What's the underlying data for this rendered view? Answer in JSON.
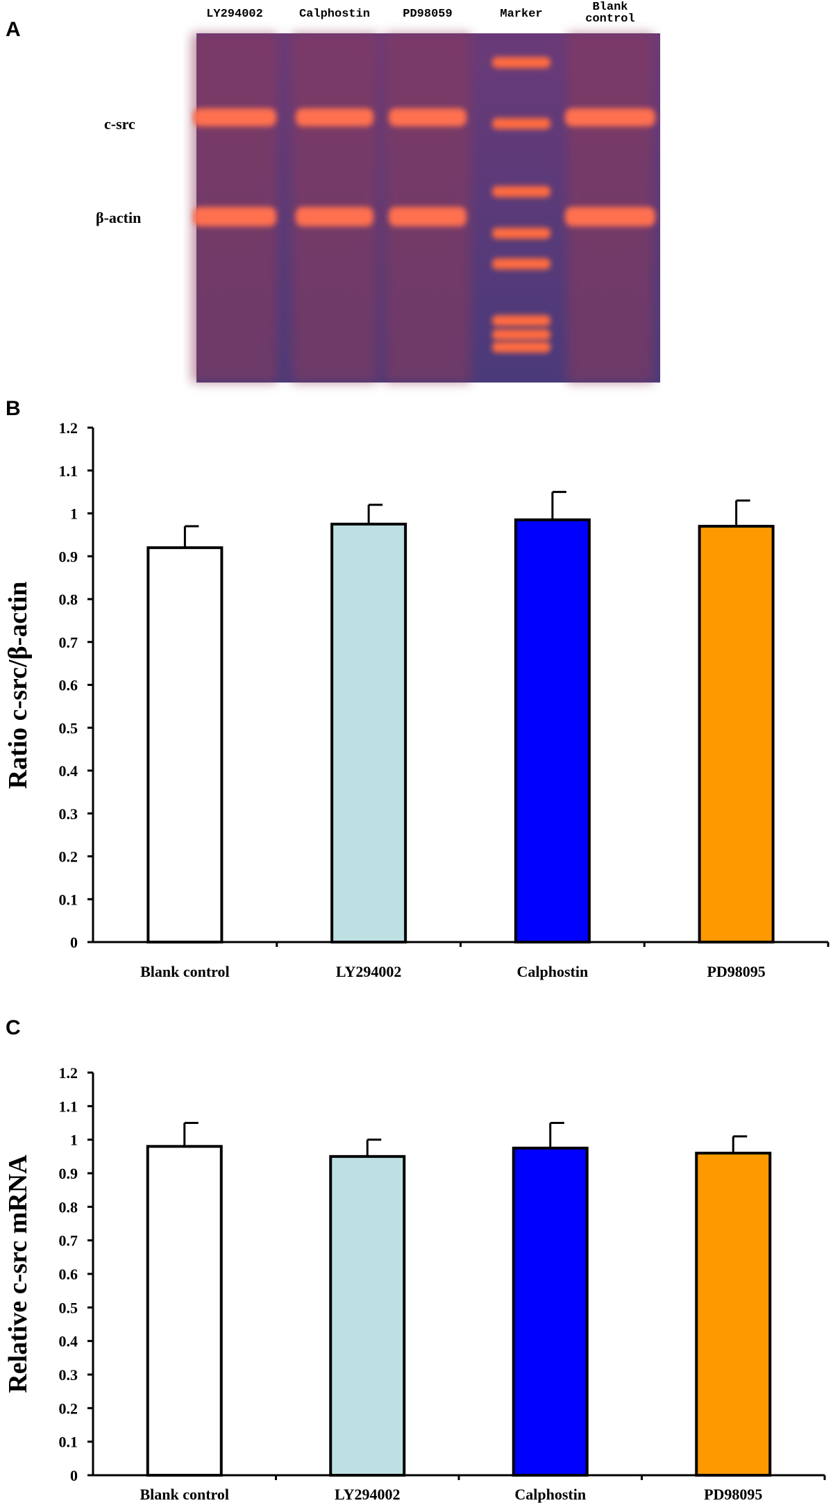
{
  "gel": {
    "panel_label": "A",
    "lanes": [
      "LY294002",
      "Calphostin",
      "PD98059",
      "Marker",
      "Blank control"
    ],
    "bands": [
      "c-src",
      "β-actin"
    ]
  },
  "chart_data": [
    {
      "type": "bar",
      "panel_label": "B",
      "ylabel": "Ratio c-src/β-actin",
      "categories": [
        "Blank control",
        "LY294002",
        "Calphostin",
        "PD98095"
      ],
      "values": [
        0.92,
        0.975,
        0.985,
        0.97
      ],
      "errors": [
        0.05,
        0.045,
        0.065,
        0.06
      ],
      "colors": [
        "#ffffff",
        "#bde0e3",
        "#0000ff",
        "#ff9900"
      ],
      "ylim": [
        0,
        1.2
      ],
      "yticks": [
        0,
        0.1,
        0.2,
        0.3,
        0.4,
        0.5,
        0.6,
        0.7,
        0.8,
        0.9,
        1,
        1.1,
        1.2
      ]
    },
    {
      "type": "bar",
      "panel_label": "C",
      "ylabel": "Relative c-src mRNA",
      "categories": [
        "Blank control",
        "LY294002",
        "Calphostin",
        "PD98095"
      ],
      "values": [
        0.98,
        0.95,
        0.975,
        0.96
      ],
      "errors": [
        0.07,
        0.05,
        0.075,
        0.05
      ],
      "colors": [
        "#ffffff",
        "#bde0e3",
        "#0000ff",
        "#ff9900"
      ],
      "ylim": [
        0,
        1.2
      ],
      "yticks": [
        0,
        0.1,
        0.2,
        0.3,
        0.4,
        0.5,
        0.6,
        0.7,
        0.8,
        0.9,
        1,
        1.1,
        1.2
      ]
    }
  ]
}
